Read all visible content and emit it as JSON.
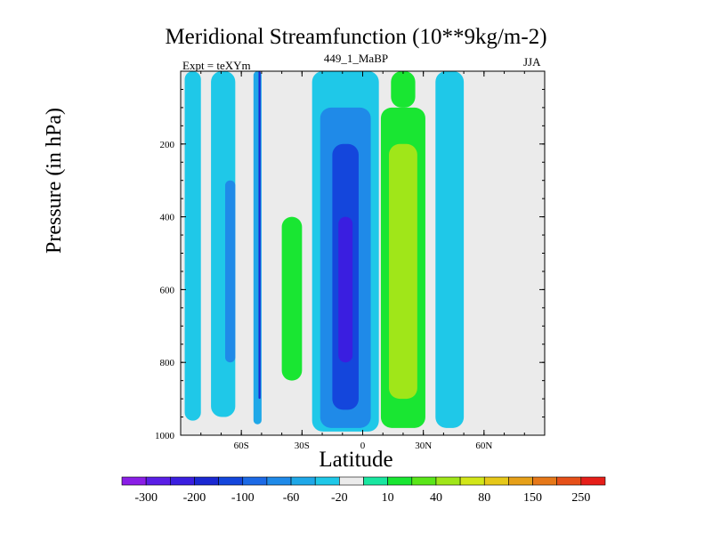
{
  "title": "Meridional Streamfunction (10**9kg/m-2)",
  "left_label": "Expt = teXYm",
  "center_label": "449_1_MaBP",
  "right_label": "JJA",
  "chart_data": {
    "type": "heatmap",
    "title": "Meridional Streamfunction (10**9kg/m-2)",
    "xlabel": "Latitude",
    "ylabel": "Pressure (in hPa)",
    "xlim": [
      -90,
      90
    ],
    "ylim": [
      1000,
      0
    ],
    "x_ticks": [
      {
        "value": -60,
        "label": "60S"
      },
      {
        "value": -30,
        "label": "30S"
      },
      {
        "value": 0,
        "label": "0"
      },
      {
        "value": 30,
        "label": "30N"
      },
      {
        "value": 60,
        "label": "60N"
      }
    ],
    "y_ticks": [
      {
        "value": 200,
        "label": "200"
      },
      {
        "value": 400,
        "label": "400"
      },
      {
        "value": 600,
        "label": "600"
      },
      {
        "value": 800,
        "label": "800"
      },
      {
        "value": 1000,
        "label": "1000"
      }
    ],
    "colorbar": {
      "colors": [
        "#8a1ee6",
        "#5a1ee6",
        "#3a1ee0",
        "#1a28d2",
        "#1446dc",
        "#1c6ae6",
        "#1f8ae8",
        "#1fa8e8",
        "#1fc8e8",
        "#ebebeb",
        "#19e6a0",
        "#19e632",
        "#5ae619",
        "#a0e619",
        "#d2e619",
        "#e6c819",
        "#e6a019",
        "#e67819",
        "#e65019",
        "#e61e19"
      ],
      "labels": [
        "-300",
        "-200",
        "-100",
        "-60",
        "-20",
        "10",
        "40",
        "80",
        "150",
        "250"
      ]
    },
    "bands": [
      {
        "x0": -88,
        "x1": -80,
        "p_top": 0,
        "p_bot": 960,
        "value": -20
      },
      {
        "x0": -75,
        "x1": -63,
        "p_top": 0,
        "p_bot": 950,
        "value": -20
      },
      {
        "x0": -68,
        "x1": -63,
        "p_top": 300,
        "p_bot": 800,
        "value": -60
      },
      {
        "x0": -54,
        "x1": -50,
        "p_top": 0,
        "p_bot": 970,
        "value": -40
      },
      {
        "x0": -51.5,
        "x1": -50.5,
        "p_top": 0,
        "p_bot": 900,
        "value": -150
      },
      {
        "x0": -44,
        "x1": -27,
        "p_top": 200,
        "p_bot": 900,
        "value": 10
      },
      {
        "x0": -40,
        "x1": -30,
        "p_top": 400,
        "p_bot": 850,
        "value": 40
      },
      {
        "x0": -25,
        "x1": 8,
        "p_top": 0,
        "p_bot": 990,
        "value": -20
      },
      {
        "x0": -21,
        "x1": 4,
        "p_top": 100,
        "p_bot": 980,
        "value": -60
      },
      {
        "x0": -15,
        "x1": -2,
        "p_top": 200,
        "p_bot": 930,
        "value": -100
      },
      {
        "x0": -12,
        "x1": -5,
        "p_top": 400,
        "p_bot": 800,
        "value": -200
      },
      {
        "x0": 14,
        "x1": 26,
        "p_top": 0,
        "p_bot": 100,
        "value": 40
      },
      {
        "x0": 9,
        "x1": 31,
        "p_top": 100,
        "p_bot": 980,
        "value": 40
      },
      {
        "x0": 13,
        "x1": 27,
        "p_top": 200,
        "p_bot": 900,
        "value": 80
      },
      {
        "x0": 36,
        "x1": 50,
        "p_top": 0,
        "p_bot": 980,
        "value": -20
      }
    ]
  }
}
